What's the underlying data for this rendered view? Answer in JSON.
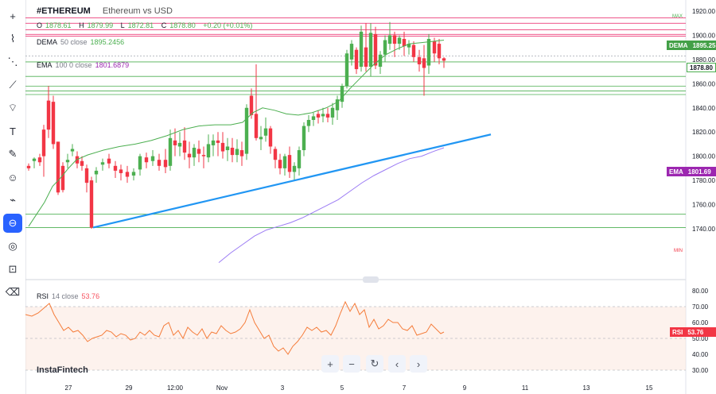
{
  "header": {
    "symbol": "#ETHEREUM",
    "description": "Ethereum vs USD",
    "ohlc": {
      "o_label": "O",
      "o_value": "1878.61",
      "h_label": "H",
      "h_value": "1879.99",
      "l_label": "L",
      "l_value": "1872.81",
      "c_label": "C",
      "c_value": "1878.80",
      "change": "+0.20 (+0.01%)"
    }
  },
  "indicators": {
    "dema": {
      "name": "DEMA",
      "params": "50 close",
      "value": "1895.2456",
      "badge_label": "DEMA",
      "badge_value": "1895.25",
      "color": "#4caf50"
    },
    "ema": {
      "name": "EMA",
      "params": "100 0 close",
      "value": "1801.6879",
      "badge_label": "EMA",
      "badge_value": "1801.69",
      "color": "#9c27b0"
    },
    "rsi": {
      "name": "RSI",
      "params": "14 close",
      "value": "53.76",
      "badge_label": "RSI",
      "badge_value": "53.76",
      "color": "#f7525f"
    }
  },
  "last_price": {
    "value": "1878.80",
    "color": "#4caf50"
  },
  "price_axis": {
    "labels": [
      "1920.00",
      "1900.00",
      "1880.00",
      "1860.00",
      "1840.00",
      "1820.00",
      "1800.00",
      "1780.00",
      "1760.00",
      "1740.00"
    ]
  },
  "rsi_axis": {
    "labels": [
      "80.00",
      "70.00",
      "60.00",
      "50.00",
      "40.00",
      "30.00"
    ]
  },
  "time_axis": {
    "labels": [
      "27",
      "29",
      "12:00",
      "Nov",
      "3",
      "5",
      "7",
      "9",
      "11",
      "13",
      "15"
    ]
  },
  "markers": {
    "max": "MAX",
    "min": "MIN"
  },
  "nav_buttons": [
    {
      "label": "+",
      "icon": "zoom-in-icon"
    },
    {
      "label": "−",
      "icon": "zoom-out-icon"
    },
    {
      "label": "↻",
      "icon": "reset-icon"
    },
    {
      "label": "‹",
      "icon": "scroll-left-icon"
    },
    {
      "label": "›",
      "icon": "scroll-right-icon"
    }
  ],
  "branding": {
    "text": "InstaFintech"
  },
  "sidebar_tools": [
    "crosshair-icon",
    "trend-line-icon",
    "fib-retracement-icon",
    "pattern-icon",
    "shapes-icon",
    "text-icon",
    "brush-icon",
    "emoji-icon",
    "measure-icon",
    "magnet-icon",
    "hide-icon",
    "lock-icon",
    "delete-icon"
  ],
  "colors": {
    "bull": "#4caf50",
    "bear": "#f23645",
    "trendline": "#2196f3",
    "hline_red": "#e91e63",
    "hline_green": "#4caf50",
    "rsi_fill": "#fbe7de"
  }
}
